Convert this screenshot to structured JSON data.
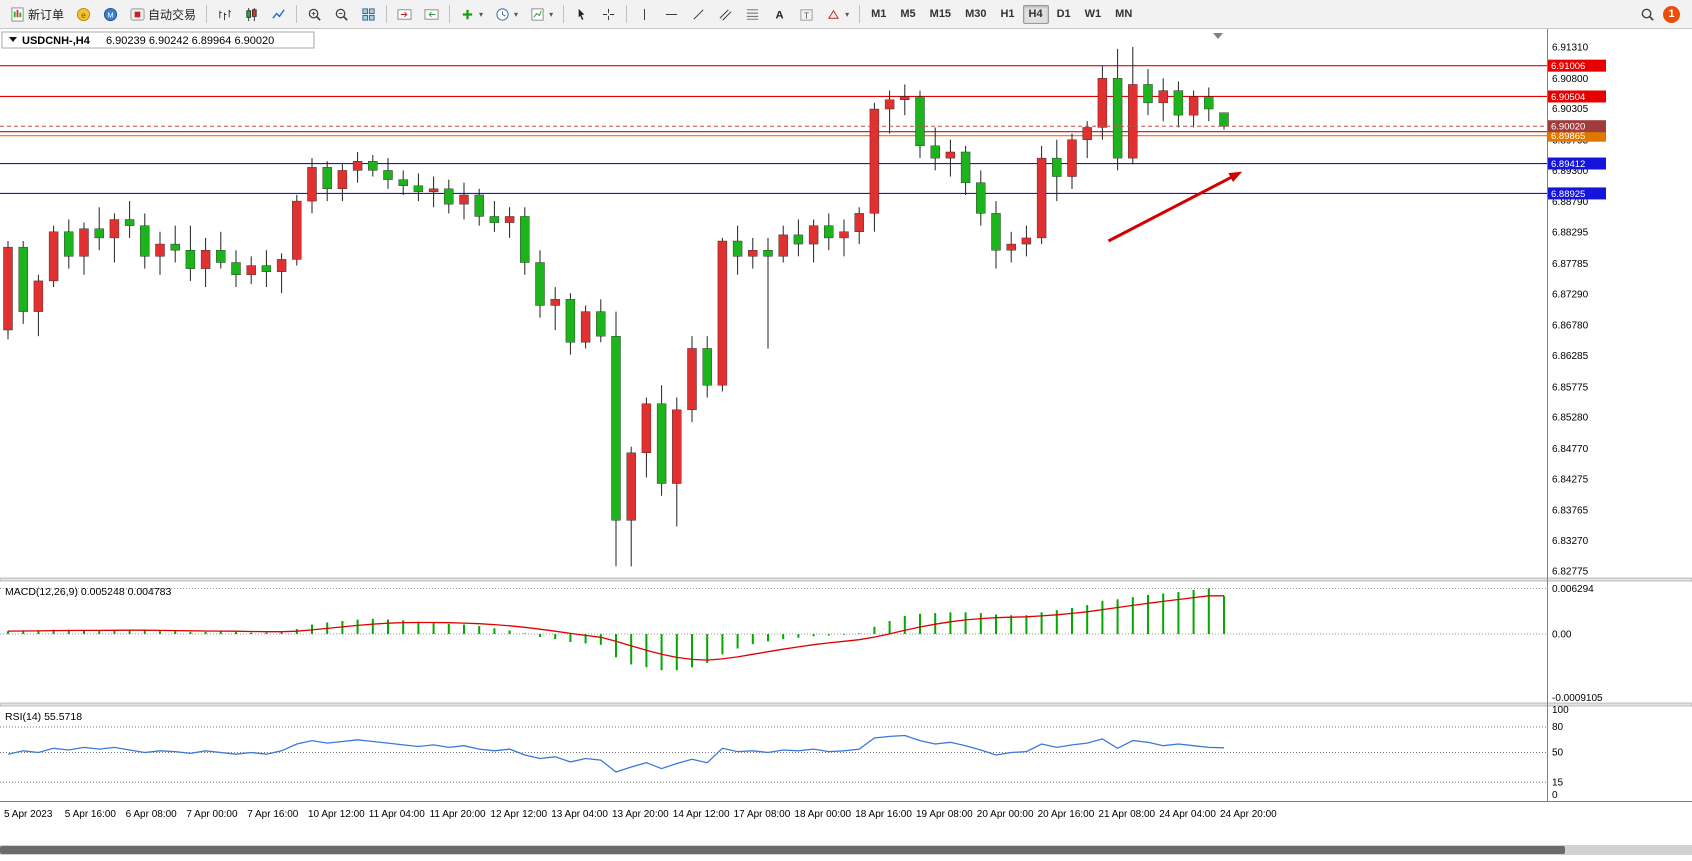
{
  "toolbar": {
    "groups": [
      [
        {
          "name": "new-order",
          "icon": "new-order",
          "label": "新订单"
        },
        {
          "name": "metaeditor",
          "icon": "metaeditor"
        },
        {
          "name": "community",
          "icon": "community"
        },
        {
          "name": "autotrading",
          "icon": "autotrading",
          "label": "自动交易"
        }
      ],
      [
        {
          "name": "bar-chart",
          "icon": "bar-chart"
        },
        {
          "name": "candlestick-chart",
          "icon": "candlestick"
        },
        {
          "name": "line-chart",
          "icon": "line-chart"
        }
      ],
      [
        {
          "name": "zoom-in",
          "icon": "zoom-in"
        },
        {
          "name": "zoom-out",
          "icon": "zoom-out"
        },
        {
          "name": "tile-windows",
          "icon": "tile-windows"
        }
      ],
      [
        {
          "name": "shift-chart-end",
          "icon": "shift-end"
        },
        {
          "name": "auto-scroll",
          "icon": "auto-scroll"
        }
      ],
      [
        {
          "name": "add-indicator",
          "icon": "add-indicator",
          "dropdown": true
        },
        {
          "name": "periods",
          "icon": "clock",
          "dropdown": true
        },
        {
          "name": "templates",
          "icon": "template",
          "dropdown": true
        }
      ],
      [
        {
          "name": "cursor",
          "icon": "cursor"
        },
        {
          "name": "crosshair",
          "icon": "crosshair"
        }
      ],
      [
        {
          "name": "vertical-line-tool",
          "icon": "vline"
        },
        {
          "name": "horizontal-line-tool",
          "icon": "hline"
        },
        {
          "name": "trendline-tool",
          "icon": "trendline"
        },
        {
          "name": "channel-tool",
          "icon": "channel"
        },
        {
          "name": "fibonacci-tool",
          "icon": "fibonacci"
        },
        {
          "name": "text-tool",
          "icon": "text-tool"
        },
        {
          "name": "label-tool",
          "icon": "label-tool"
        },
        {
          "name": "shapes-tool",
          "icon": "shapes",
          "dropdown": true
        }
      ]
    ],
    "timeframes": [
      "M1",
      "M5",
      "M15",
      "M30",
      "H1",
      "H4",
      "D1",
      "W1",
      "MN"
    ],
    "active_timeframe": "H4",
    "notification_count": "1"
  },
  "chart": {
    "title": "USDCNH-,H4",
    "quotes": "6.90239 6.90242 6.89964 6.90020"
  },
  "chart_data": {
    "type": "candlestick",
    "symbol": "USDCNH-",
    "timeframe": "H4",
    "up_color": "#e03030",
    "down_color": "#1db31d",
    "price_range": {
      "top": 6.9131,
      "bottom": 6.82775
    },
    "y_ticks": [
      "6.91310",
      "6.90800",
      "6.90305",
      "6.89795",
      "6.89300",
      "6.88790",
      "6.88295",
      "6.87785",
      "6.87290",
      "6.86780",
      "6.86285",
      "6.85775",
      "6.85280",
      "6.84770",
      "6.84275",
      "6.83765",
      "6.83270",
      "6.82775"
    ],
    "time_labels": [
      "5 Apr 2023",
      "5 Apr 16:00",
      "6 Apr 08:00",
      "7 Apr 00:00",
      "7 Apr 16:00",
      "10 Apr 12:00",
      "11 Apr 04:00",
      "11 Apr 20:00",
      "12 Apr 12:00",
      "13 Apr 04:00",
      "13 Apr 20:00",
      "14 Apr 12:00",
      "17 Apr 08:00",
      "18 Apr 00:00",
      "18 Apr 16:00",
      "19 Apr 08:00",
      "20 Apr 00:00",
      "20 Apr 16:00",
      "21 Apr 08:00",
      "24 Apr 04:00",
      "24 Apr 20:00"
    ],
    "bars_per_label": 4,
    "ohlc": [
      [
        6.867,
        6.8815,
        6.8655,
        6.8805
      ],
      [
        6.8805,
        6.8815,
        6.868,
        6.87
      ],
      [
        6.87,
        6.876,
        6.866,
        6.875
      ],
      [
        6.875,
        6.884,
        6.874,
        6.883
      ],
      [
        6.883,
        6.885,
        6.877,
        6.879
      ],
      [
        6.879,
        6.8845,
        6.876,
        6.8835
      ],
      [
        6.8835,
        6.887,
        6.88,
        6.882
      ],
      [
        6.882,
        6.886,
        6.878,
        6.885
      ],
      [
        6.885,
        6.888,
        6.882,
        6.884
      ],
      [
        6.884,
        6.886,
        6.877,
        6.879
      ],
      [
        6.879,
        6.883,
        6.876,
        6.881
      ],
      [
        6.881,
        6.884,
        6.878,
        6.88
      ],
      [
        6.88,
        6.884,
        6.875,
        6.877
      ],
      [
        6.877,
        6.882,
        6.874,
        6.88
      ],
      [
        6.88,
        6.883,
        6.877,
        6.878
      ],
      [
        6.878,
        6.88,
        6.874,
        6.876
      ],
      [
        6.876,
        6.879,
        6.8745,
        6.8775
      ],
      [
        6.8775,
        6.88,
        6.874,
        6.8765
      ],
      [
        6.8765,
        6.8795,
        6.873,
        6.8785
      ],
      [
        6.8785,
        6.889,
        6.8775,
        6.888
      ],
      [
        6.888,
        6.895,
        6.886,
        6.8935
      ],
      [
        6.8935,
        6.8945,
        6.888,
        6.89
      ],
      [
        6.89,
        6.894,
        6.888,
        6.893
      ],
      [
        6.893,
        6.896,
        6.891,
        6.8945
      ],
      [
        6.8945,
        6.8955,
        6.892,
        6.893
      ],
      [
        6.893,
        6.895,
        6.89,
        6.8915
      ],
      [
        6.8915,
        6.893,
        6.889,
        6.8905
      ],
      [
        6.8905,
        6.8925,
        6.888,
        6.8895
      ],
      [
        6.8895,
        6.892,
        6.887,
        6.89
      ],
      [
        6.89,
        6.8915,
        6.886,
        6.8875
      ],
      [
        6.8875,
        6.891,
        6.885,
        6.889
      ],
      [
        6.889,
        6.89,
        6.884,
        6.8855
      ],
      [
        6.8855,
        6.888,
        6.883,
        6.8845
      ],
      [
        6.8845,
        6.887,
        6.882,
        6.8855
      ],
      [
        6.8855,
        6.887,
        6.876,
        6.878
      ],
      [
        6.878,
        6.88,
        6.869,
        6.871
      ],
      [
        6.871,
        6.874,
        6.867,
        6.872
      ],
      [
        6.872,
        6.873,
        6.863,
        6.865
      ],
      [
        6.865,
        6.871,
        6.864,
        6.87
      ],
      [
        6.87,
        6.872,
        6.865,
        6.866
      ],
      [
        6.866,
        6.87,
        6.8285,
        6.836
      ],
      [
        6.836,
        6.848,
        6.8285,
        6.847
      ],
      [
        6.847,
        6.856,
        6.843,
        6.855
      ],
      [
        6.855,
        6.858,
        6.84,
        6.842
      ],
      [
        6.842,
        6.856,
        6.835,
        6.854
      ],
      [
        6.854,
        6.866,
        6.852,
        6.864
      ],
      [
        6.864,
        6.866,
        6.856,
        6.858
      ],
      [
        6.858,
        6.882,
        6.857,
        6.8815
      ],
      [
        6.8815,
        6.884,
        6.876,
        6.879
      ],
      [
        6.879,
        6.882,
        6.877,
        6.88
      ],
      [
        6.88,
        6.882,
        6.864,
        6.879
      ],
      [
        6.879,
        6.884,
        6.878,
        6.8825
      ],
      [
        6.8825,
        6.885,
        6.879,
        6.881
      ],
      [
        6.881,
        6.885,
        6.878,
        6.884
      ],
      [
        6.884,
        6.886,
        6.88,
        6.882
      ],
      [
        6.882,
        6.885,
        6.879,
        6.883
      ],
      [
        6.883,
        6.887,
        6.881,
        6.886
      ],
      [
        6.886,
        6.904,
        6.883,
        6.903
      ],
      [
        6.903,
        6.906,
        6.899,
        6.9045
      ],
      [
        6.9045,
        6.907,
        6.902,
        6.905
      ],
      [
        6.905,
        6.906,
        6.895,
        6.897
      ],
      [
        6.897,
        6.9,
        6.893,
        6.895
      ],
      [
        6.895,
        6.898,
        6.892,
        6.896
      ],
      [
        6.896,
        6.897,
        6.889,
        6.891
      ],
      [
        6.891,
        6.893,
        6.884,
        6.886
      ],
      [
        6.886,
        6.888,
        6.877,
        6.88
      ],
      [
        6.88,
        6.883,
        6.878,
        6.881
      ],
      [
        6.881,
        6.884,
        6.879,
        6.882
      ],
      [
        6.882,
        6.897,
        6.881,
        6.895
      ],
      [
        6.895,
        6.898,
        6.888,
        6.892
      ],
      [
        6.892,
        6.899,
        6.89,
        6.898
      ],
      [
        6.898,
        6.901,
        6.895,
        6.9
      ],
      [
        6.9,
        6.91,
        6.898,
        6.908
      ],
      [
        6.908,
        6.9128,
        6.893,
        6.895
      ],
      [
        6.895,
        6.9131,
        6.894,
        6.907
      ],
      [
        6.907,
        6.9095,
        6.902,
        6.904
      ],
      [
        6.904,
        6.908,
        6.901,
        6.906
      ],
      [
        6.906,
        6.9075,
        6.9,
        6.902
      ],
      [
        6.902,
        6.906,
        6.9,
        6.905
      ],
      [
        6.905,
        6.9065,
        6.901,
        6.903
      ],
      [
        6.90239,
        6.90242,
        6.89964,
        6.9002
      ]
    ],
    "lines": [
      {
        "price": 6.91006,
        "color": "#e80000",
        "badge": true,
        "badge_color": "#e80000"
      },
      {
        "price": 6.90504,
        "color": "#e80000",
        "badge": true,
        "badge_color": "#e80000"
      },
      {
        "price": 6.8993,
        "color": "#e80000",
        "badge": false,
        "badge_color": "#e80000"
      },
      {
        "price": 6.89865,
        "color": "#e07800",
        "badge": true,
        "badge_color": "#e07800"
      },
      {
        "price": 6.89412,
        "color": "#1414dc",
        "badge": true,
        "badge_color": "#1414dc"
      },
      {
        "price": 6.88925,
        "color": "#1414dc",
        "badge": true,
        "badge_color": "#1414dc"
      }
    ],
    "bid": {
      "price": 6.9002,
      "badge_color": "#a03c3c"
    },
    "indicators": [
      {
        "name": "MACD",
        "label": "MACD(12,26,9) 0.005248 0.004783",
        "histogram_color": "#00a800",
        "signal_color": "#e00000",
        "signal_period": 9,
        "axis_labels": [
          "0.006294",
          "0.00",
          "-0.0009105"
        ],
        "values": [
          0.0004,
          0.0005,
          0.0005,
          0.0006,
          0.0006,
          0.0005,
          0.0005,
          0.0006,
          0.0006,
          0.0005,
          0.0004,
          0.0004,
          0.0003,
          0.0003,
          0.0004,
          0.0003,
          0.0002,
          0.0002,
          0.0003,
          0.0007,
          0.0013,
          0.0016,
          0.0018,
          0.002,
          0.0021,
          0.002,
          0.0019,
          0.0017,
          0.0016,
          0.0014,
          0.0013,
          0.0011,
          0.0008,
          0.0005,
          0.0001,
          -0.0004,
          -0.0007,
          -0.0011,
          -0.0013,
          -0.0015,
          -0.0032,
          -0.0042,
          -0.0046,
          -0.005,
          -0.005,
          -0.0046,
          -0.004,
          -0.0028,
          -0.002,
          -0.0014,
          -0.001,
          -0.0007,
          -0.0005,
          -0.0003,
          -0.0002,
          -0.0001,
          0.0001,
          0.001,
          0.0018,
          0.0025,
          0.0028,
          0.0029,
          0.003,
          0.003,
          0.0029,
          0.0027,
          0.0026,
          0.0026,
          0.003,
          0.0033,
          0.0036,
          0.004,
          0.0046,
          0.0048,
          0.0051,
          0.0054,
          0.0056,
          0.0058,
          0.0061,
          0.0063,
          0.00525
        ]
      },
      {
        "name": "RSI",
        "label": "RSI(14) 55.5718",
        "line_color": "#3c78dc",
        "levels": [
          80,
          50,
          15
        ],
        "axis_labels": [
          "100",
          "80",
          "50",
          "15",
          "0"
        ],
        "values": [
          48,
          52,
          50,
          55,
          53,
          56,
          54,
          56,
          53,
          50,
          52,
          51,
          49,
          52,
          50,
          48,
          50,
          48,
          52,
          60,
          64,
          61,
          63,
          65,
          63,
          61,
          59,
          57,
          59,
          56,
          58,
          54,
          52,
          54,
          47,
          43,
          45,
          39,
          43,
          41,
          27,
          33,
          38,
          31,
          37,
          42,
          38,
          55,
          51,
          52,
          50,
          53,
          52,
          54,
          51,
          52,
          54,
          67,
          69,
          70,
          64,
          60,
          62,
          58,
          53,
          47,
          50,
          51,
          60,
          56,
          59,
          61,
          66,
          55,
          64,
          62,
          58,
          60,
          58,
          56,
          55.57
        ]
      }
    ],
    "arrow_annotation": {
      "color": "#d40000",
      "from_bar": 72.4,
      "from_price": 6.8815,
      "to_bar": 81.2,
      "to_price": 6.8928
    }
  }
}
